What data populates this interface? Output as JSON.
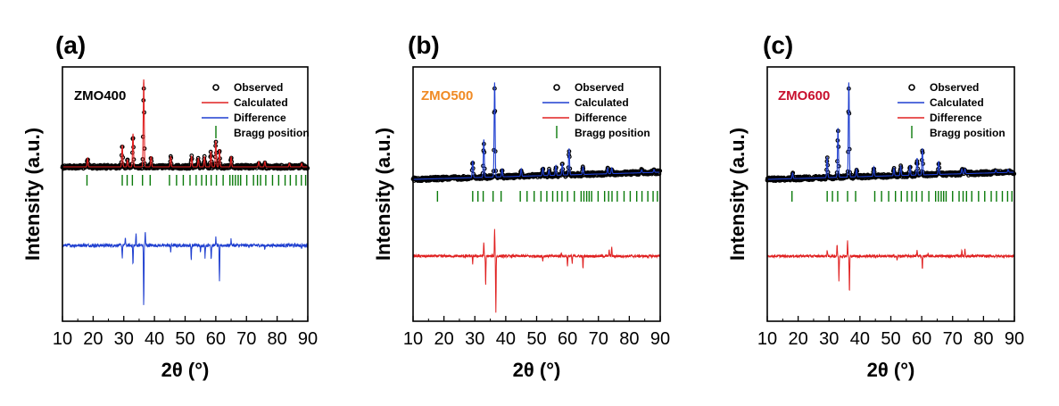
{
  "chart_data": [
    {
      "type": "line",
      "panel_label": "(a)",
      "sample": "ZMO400",
      "sample_color": "#000000",
      "xlabel": "2θ (°)",
      "ylabel": "Intensity (a.u.)",
      "xlim": [
        10,
        90
      ],
      "xticks": [
        10,
        20,
        30,
        40,
        50,
        60,
        70,
        80,
        90
      ],
      "y_ticks_shown": false,
      "legend": {
        "placement": "top-right",
        "entries": [
          {
            "name": "Observed",
            "kind": "marker",
            "color": "#000000"
          },
          {
            "name": "Calculated",
            "kind": "line",
            "color": "#e02020"
          },
          {
            "name": "Difference",
            "kind": "line",
            "color": "#1f3fd0"
          },
          {
            "name": "Bragg position",
            "kind": "tick",
            "color": "#0a7a0a"
          }
        ]
      },
      "peaks": [
        {
          "x": 18.2,
          "h": 0.1
        },
        {
          "x": 29.5,
          "h": 0.25
        },
        {
          "x": 31.2,
          "h": 0.08
        },
        {
          "x": 33.0,
          "h": 0.38
        },
        {
          "x": 36.5,
          "h": 1.0
        },
        {
          "x": 38.9,
          "h": 0.12
        },
        {
          "x": 45.3,
          "h": 0.12
        },
        {
          "x": 52.1,
          "h": 0.12
        },
        {
          "x": 54.3,
          "h": 0.1
        },
        {
          "x": 56.3,
          "h": 0.12
        },
        {
          "x": 58.4,
          "h": 0.18
        },
        {
          "x": 60.0,
          "h": 0.3
        },
        {
          "x": 61.2,
          "h": 0.2
        },
        {
          "x": 65.0,
          "h": 0.12
        },
        {
          "x": 74.0,
          "h": 0.06
        },
        {
          "x": 76.0,
          "h": 0.06
        },
        {
          "x": 84.0,
          "h": 0.04
        },
        {
          "x": 88.0,
          "h": 0.04
        }
      ],
      "bragg_positions": [
        18.0,
        29.5,
        31.1,
        32.8,
        36.1,
        38.6,
        44.9,
        47.2,
        49.4,
        51.6,
        53.6,
        55.4,
        56.9,
        58.5,
        60.2,
        62.4,
        64.6,
        65.5,
        66.4,
        67.3,
        68.1,
        70.1,
        72.3,
        73.6,
        74.6,
        76.3,
        78.5,
        80.5,
        82.6,
        84.3,
        86.2,
        87.9,
        89.3
      ],
      "difference_features": [
        {
          "x": 29.5,
          "v": -0.45
        },
        {
          "x": 30.5,
          "v": 0.3
        },
        {
          "x": 33.0,
          "v": -0.75
        },
        {
          "x": 34.0,
          "v": 0.45
        },
        {
          "x": 36.5,
          "v": -2.3
        },
        {
          "x": 37.0,
          "v": 0.55
        },
        {
          "x": 45.3,
          "v": -0.25
        },
        {
          "x": 52.0,
          "v": -0.55
        },
        {
          "x": 55.0,
          "v": -0.3
        },
        {
          "x": 56.5,
          "v": -0.45
        },
        {
          "x": 58.5,
          "v": -0.5
        },
        {
          "x": 60.0,
          "v": 0.3
        },
        {
          "x": 61.2,
          "v": -1.4
        },
        {
          "x": 65.0,
          "v": 0.25
        },
        {
          "x": 76.0,
          "v": -0.15
        },
        {
          "x": 88.0,
          "v": -0.1
        }
      ]
    },
    {
      "type": "line",
      "panel_label": "(b)",
      "sample": "ZMO500",
      "sample_color": "#f08a24",
      "xlabel": "2θ (°)",
      "ylabel": "Intensity (a.u.)",
      "xlim": [
        10,
        90
      ],
      "xticks": [
        10,
        20,
        30,
        40,
        50,
        60,
        70,
        80,
        90
      ],
      "y_ticks_shown": false,
      "legend": {
        "placement": "top-right",
        "entries": [
          {
            "name": "Observed",
            "kind": "marker",
            "color": "#000000"
          },
          {
            "name": "Calculated",
            "kind": "line",
            "color": "#1f3fd0"
          },
          {
            "name": "Difference",
            "kind": "line",
            "color": "#e02020"
          },
          {
            "name": "Bragg position",
            "kind": "tick",
            "color": "#0a7a0a"
          }
        ]
      },
      "peaks": [
        {
          "x": 29.3,
          "h": 0.18
        },
        {
          "x": 32.9,
          "h": 0.4
        },
        {
          "x": 36.4,
          "h": 1.0
        },
        {
          "x": 38.8,
          "h": 0.08
        },
        {
          "x": 45.0,
          "h": 0.08
        },
        {
          "x": 52.0,
          "h": 0.08
        },
        {
          "x": 54.0,
          "h": 0.06
        },
        {
          "x": 56.2,
          "h": 0.1
        },
        {
          "x": 58.3,
          "h": 0.12
        },
        {
          "x": 60.5,
          "h": 0.28
        },
        {
          "x": 65.0,
          "h": 0.08
        },
        {
          "x": 73.0,
          "h": 0.06
        },
        {
          "x": 74.3,
          "h": 0.06
        },
        {
          "x": 84.0,
          "h": 0.03
        },
        {
          "x": 88.0,
          "h": 0.03
        }
      ],
      "bragg_positions": [
        17.9,
        29.3,
        31.0,
        32.7,
        35.9,
        38.5,
        44.7,
        46.9,
        49.2,
        51.4,
        53.3,
        55.2,
        56.7,
        58.2,
        60.0,
        62.2,
        64.4,
        65.3,
        66.2,
        67.0,
        67.8,
        69.9,
        72.0,
        73.3,
        74.4,
        76.1,
        78.3,
        80.3,
        82.4,
        84.1,
        86.0,
        87.7,
        89.1
      ],
      "difference_features": [
        {
          "x": 29.3,
          "v": -0.35
        },
        {
          "x": 32.9,
          "v": 0.65
        },
        {
          "x": 33.5,
          "v": -1.4
        },
        {
          "x": 36.4,
          "v": 1.3
        },
        {
          "x": 36.8,
          "v": -2.6
        },
        {
          "x": 52.0,
          "v": -0.2
        },
        {
          "x": 58.0,
          "v": 0.2
        },
        {
          "x": 60.0,
          "v": -0.45
        },
        {
          "x": 61.5,
          "v": -0.35
        },
        {
          "x": 65.0,
          "v": -0.55
        },
        {
          "x": 73.5,
          "v": 0.35
        },
        {
          "x": 74.3,
          "v": 0.45
        }
      ]
    },
    {
      "type": "line",
      "panel_label": "(c)",
      "sample": "ZMO600",
      "sample_color": "#c8102e",
      "xlabel": "2θ (°)",
      "ylabel": "Intensity (a.u.)",
      "xlim": [
        10,
        90
      ],
      "xticks": [
        10,
        20,
        30,
        40,
        50,
        60,
        70,
        80,
        90
      ],
      "y_ticks_shown": false,
      "legend": {
        "placement": "top-right",
        "entries": [
          {
            "name": "Observed",
            "kind": "marker",
            "color": "#000000"
          },
          {
            "name": "Calculated",
            "kind": "line",
            "color": "#1f3fd0"
          },
          {
            "name": "Difference",
            "kind": "line",
            "color": "#e02020"
          },
          {
            "name": "Bragg position",
            "kind": "tick",
            "color": "#0a7a0a"
          }
        ]
      },
      "peaks": [
        {
          "x": 18.2,
          "h": 0.06
        },
        {
          "x": 29.4,
          "h": 0.22
        },
        {
          "x": 32.9,
          "h": 0.52
        },
        {
          "x": 36.4,
          "h": 1.0
        },
        {
          "x": 38.9,
          "h": 0.08
        },
        {
          "x": 44.5,
          "h": 0.1
        },
        {
          "x": 51.0,
          "h": 0.08
        },
        {
          "x": 53.2,
          "h": 0.1
        },
        {
          "x": 56.2,
          "h": 0.1
        },
        {
          "x": 58.5,
          "h": 0.18
        },
        {
          "x": 60.2,
          "h": 0.28
        },
        {
          "x": 65.5,
          "h": 0.14
        },
        {
          "x": 73.0,
          "h": 0.05
        },
        {
          "x": 74.0,
          "h": 0.05
        },
        {
          "x": 84.0,
          "h": 0.03
        },
        {
          "x": 88.0,
          "h": 0.03
        }
      ],
      "bragg_positions": [
        18.0,
        29.4,
        31.1,
        32.8,
        36.0,
        38.6,
        44.8,
        47.0,
        49.3,
        51.5,
        53.4,
        55.3,
        56.8,
        58.3,
        60.1,
        62.3,
        64.5,
        65.4,
        66.3,
        67.1,
        67.9,
        70.0,
        72.1,
        73.4,
        74.5,
        76.2,
        78.4,
        80.4,
        82.5,
        84.2,
        86.1,
        87.8,
        89.2
      ],
      "difference_features": [
        {
          "x": 29.4,
          "v": 0.3
        },
        {
          "x": 32.6,
          "v": 0.55
        },
        {
          "x": 33.2,
          "v": -1.2
        },
        {
          "x": 36.0,
          "v": 0.7
        },
        {
          "x": 36.6,
          "v": -1.8
        },
        {
          "x": 52.0,
          "v": -0.2
        },
        {
          "x": 58.5,
          "v": 0.3
        },
        {
          "x": 60.2,
          "v": -0.6
        },
        {
          "x": 62.0,
          "v": 0.15
        },
        {
          "x": 73.0,
          "v": 0.3
        },
        {
          "x": 74.0,
          "v": 0.35
        }
      ]
    }
  ]
}
